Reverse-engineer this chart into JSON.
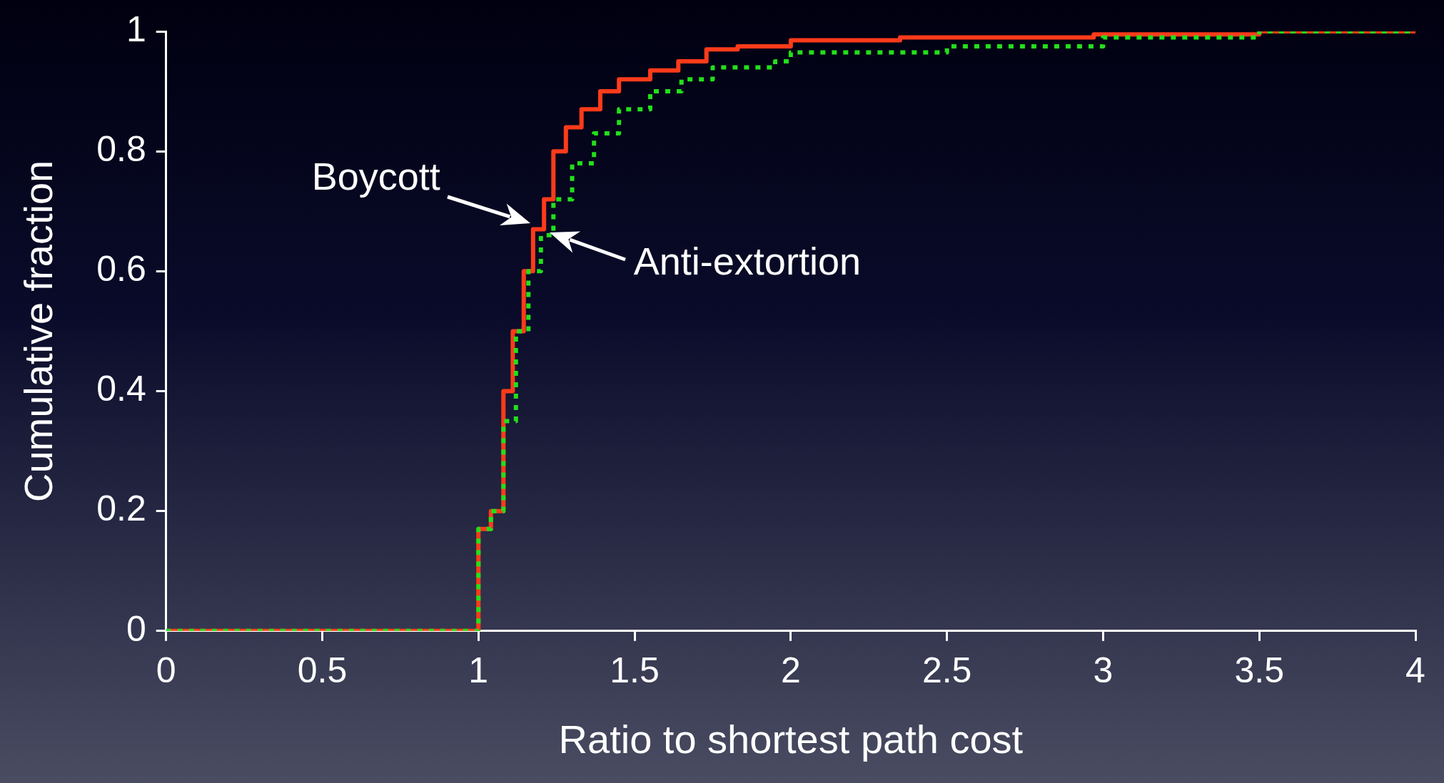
{
  "chart_data": {
    "type": "step",
    "xlabel": "Ratio to shortest path cost",
    "ylabel": "Cumulative fraction",
    "xlim": [
      0,
      4
    ],
    "xticks": [
      0,
      0.5,
      1,
      1.5,
      2,
      2.5,
      3,
      3.5,
      4
    ],
    "ylim": [
      0,
      1
    ],
    "yticks": [
      0,
      0.2,
      0.4,
      0.6,
      0.8,
      1
    ],
    "grid": false,
    "legend": false,
    "marker": "none",
    "series": [
      {
        "name": "Boycott",
        "color": "#ff3b1a",
        "line_style": "solid",
        "x": [
          0,
          1,
          1.04,
          1.08,
          1.11,
          1.145,
          1.175,
          1.21,
          1.24,
          1.28,
          1.33,
          1.39,
          1.45,
          1.55,
          1.64,
          1.73,
          1.83,
          2,
          2.35,
          2.97,
          3.5,
          4
        ],
        "values": [
          0,
          0.17,
          0.2,
          0.4,
          0.5,
          0.6,
          0.67,
          0.72,
          0.8,
          0.84,
          0.87,
          0.9,
          0.92,
          0.935,
          0.95,
          0.97,
          0.975,
          0.985,
          0.99,
          0.995,
          1,
          1
        ]
      },
      {
        "name": "Anti-extortion",
        "color": "#22e01a",
        "line_style": "dotted",
        "x": [
          0,
          1,
          1.04,
          1.08,
          1.12,
          1.16,
          1.2,
          1.24,
          1.3,
          1.37,
          1.45,
          1.55,
          1.65,
          1.75,
          1.95,
          2,
          2.5,
          3,
          3.5,
          4
        ],
        "values": [
          0,
          0.17,
          0.2,
          0.35,
          0.5,
          0.6,
          0.66,
          0.72,
          0.78,
          0.83,
          0.87,
          0.9,
          0.92,
          0.94,
          0.95,
          0.965,
          0.975,
          0.99,
          1,
          1
        ]
      }
    ]
  }
}
